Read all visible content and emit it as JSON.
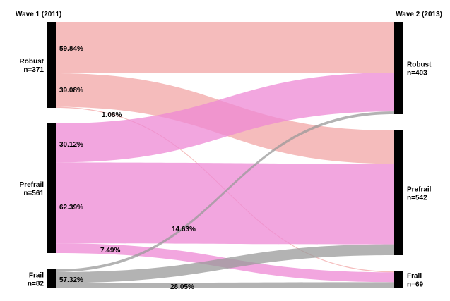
{
  "chart_data": {
    "type": "sankey",
    "left_column_title": "Wave 1 (2011)",
    "right_column_title": "Wave 2 (2013)",
    "left_nodes": [
      {
        "id": "robust",
        "label": "Robust",
        "n_label": "n=371",
        "n": 371
      },
      {
        "id": "prefrail",
        "label": "Prefrail",
        "n_label": "n=561",
        "n": 561
      },
      {
        "id": "frail",
        "label": "Frail",
        "n_label": "n=82",
        "n": 82
      }
    ],
    "right_nodes": [
      {
        "id": "robust",
        "label": "Robust",
        "n_label": "n=403",
        "n": 403
      },
      {
        "id": "prefrail",
        "label": "Prefrail",
        "n_label": "n=542",
        "n": 542
      },
      {
        "id": "frail",
        "label": "Frail",
        "n_label": "n=69",
        "n": 69
      }
    ],
    "flows": [
      {
        "from": "robust",
        "to": "robust",
        "percent": 59.84,
        "label": "59.84%"
      },
      {
        "from": "robust",
        "to": "prefrail",
        "percent": 39.08,
        "label": "39.08%"
      },
      {
        "from": "robust",
        "to": "frail",
        "percent": 1.08,
        "label": "1.08%"
      },
      {
        "from": "prefrail",
        "to": "robust",
        "percent": 30.12,
        "label": "30.12%"
      },
      {
        "from": "prefrail",
        "to": "prefrail",
        "percent": 62.39,
        "label": "62.39%"
      },
      {
        "from": "prefrail",
        "to": "frail",
        "percent": 7.49,
        "label": "7.49%"
      },
      {
        "from": "frail",
        "to": "robust",
        "percent": 14.63,
        "label": "14.63%"
      },
      {
        "from": "frail",
        "to": "prefrail",
        "percent": 57.32,
        "label": "57.32%"
      },
      {
        "from": "frail",
        "to": "frail",
        "percent": 28.05,
        "label": "28.05%"
      }
    ],
    "colors": {
      "robust": "#f2a6a6",
      "prefrail": "#ee88d4",
      "frail": "#999999",
      "node_bar": "#000000"
    }
  }
}
